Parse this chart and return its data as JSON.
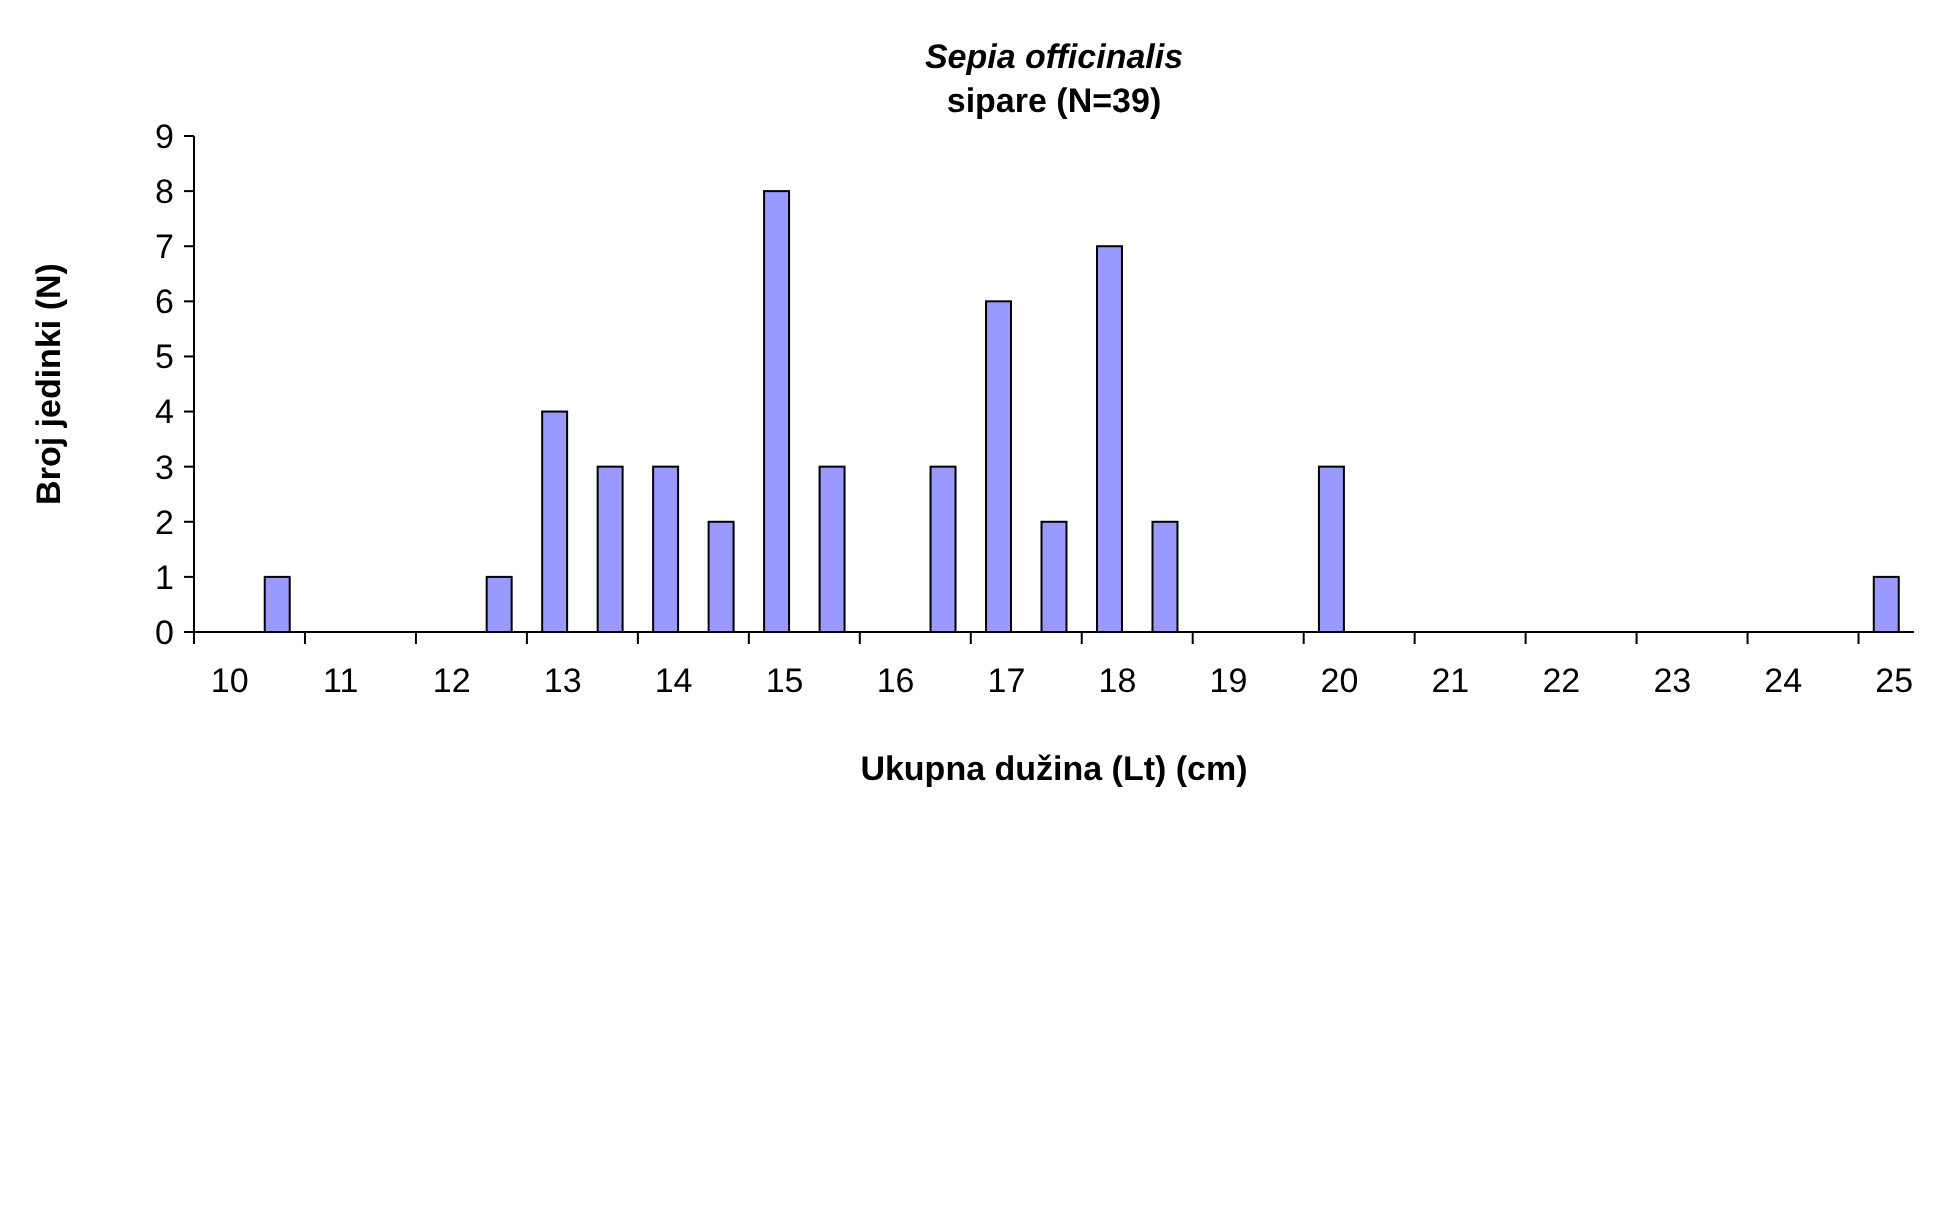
{
  "chart_data": {
    "type": "bar",
    "title": "Sepia officinalis",
    "subtitle": "sipare (N=39)",
    "xlabel": "Ukupna dužina (Lt) (cm)",
    "ylabel": "Broj jedinki (N)",
    "categories": [
      "10",
      null,
      "11",
      null,
      "12",
      null,
      "13",
      null,
      "14",
      null,
      "15",
      null,
      "16",
      null,
      "17",
      null,
      "18",
      null,
      "19",
      null,
      "20",
      null,
      "21",
      null,
      "22",
      null,
      "23",
      null,
      "24",
      null,
      "25"
    ],
    "values": [
      0,
      1,
      0,
      0,
      0,
      1,
      4,
      3,
      3,
      2,
      8,
      3,
      0,
      3,
      6,
      2,
      7,
      2,
      0,
      0,
      3,
      0,
      0,
      0,
      0,
      0,
      0,
      0,
      0,
      0,
      1
    ],
    "color": "#9999ff",
    "ylim": [
      0,
      9
    ],
    "yticks": [
      0,
      1,
      2,
      3,
      4,
      5,
      6,
      7,
      8,
      9
    ],
    "grid": false
  }
}
